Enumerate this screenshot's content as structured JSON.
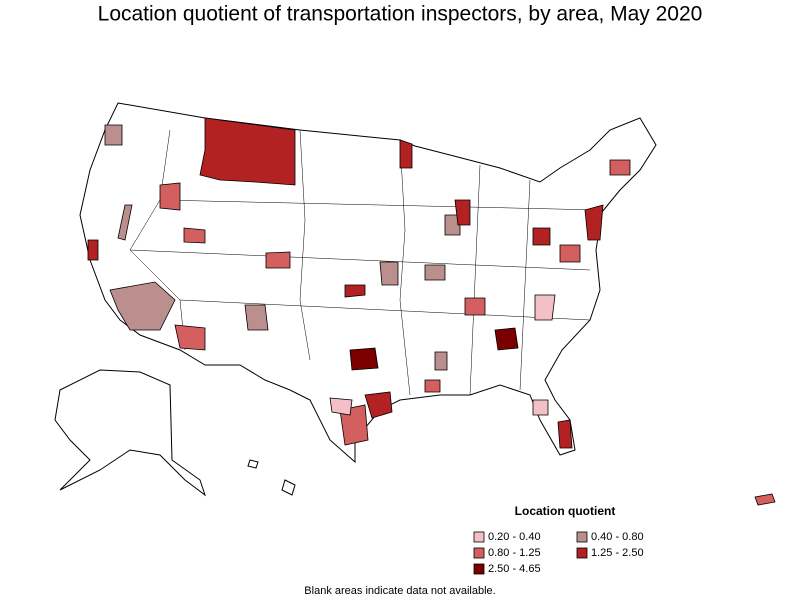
{
  "title": "Location quotient of transportation inspectors, by area, May 2020",
  "legend": {
    "title": "Location quotient",
    "items": [
      {
        "label": "0.20 - 0.40",
        "color": "#f4c0c8"
      },
      {
        "label": "0.40 - 0.80",
        "color": "#bc8f8f"
      },
      {
        "label": "0.80 - 1.25",
        "color": "#d45f5f"
      },
      {
        "label": "1.25 - 2.50",
        "color": "#b22222"
      },
      {
        "label": "2.50 - 4.65",
        "color": "#7a0000"
      }
    ]
  },
  "note": "Blank areas indicate data not available."
}
